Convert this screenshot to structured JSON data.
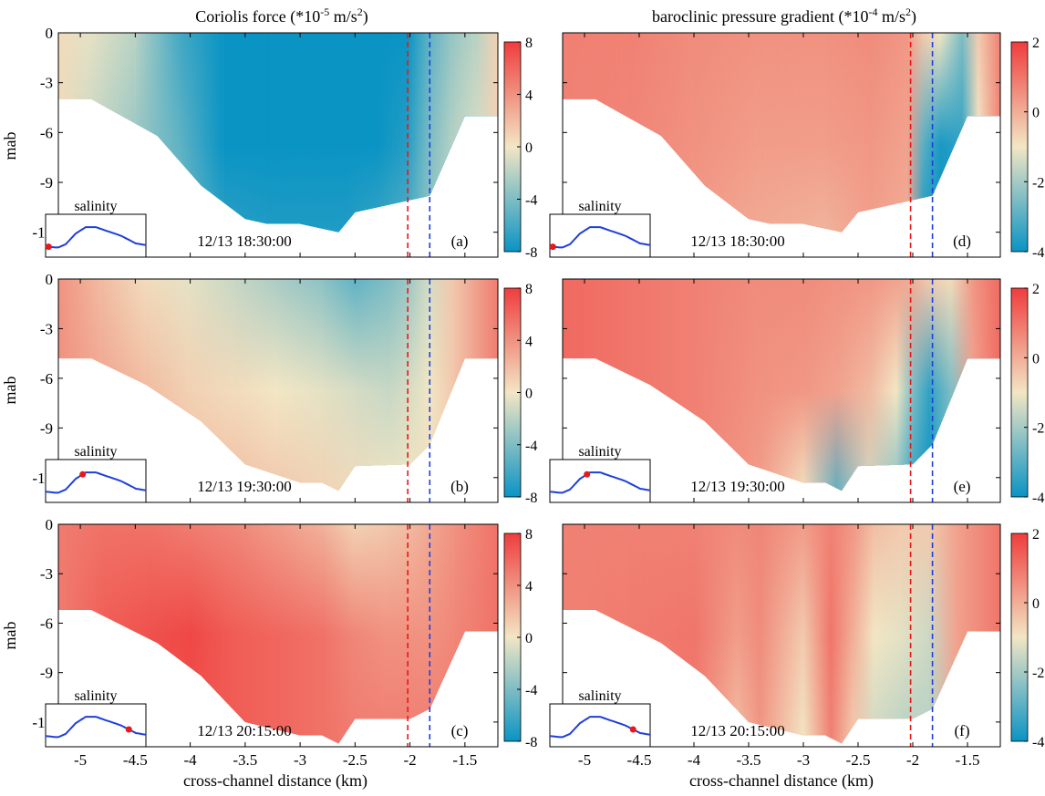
{
  "figure": {
    "columns": [
      {
        "title_prefix": "Coriolis force (*10",
        "title_exp": "-5",
        "title_mid": " m/s",
        "title_sup2": "2",
        "title_suffix": ")"
      },
      {
        "title_prefix": "baroclinic pressure gradient (*10",
        "title_exp": "-4",
        "title_mid": " m/s",
        "title_sup2": "2",
        "title_suffix": ")"
      }
    ],
    "xlabel": "cross-channel distance (km)",
    "ylabel": "mab",
    "inset_label": "salinity",
    "reference_lines": [
      {
        "x": -2.02,
        "color": "#e41a1c"
      },
      {
        "x": -1.82,
        "color": "#1f3fd9"
      }
    ],
    "colormap": [
      "#0a94c4",
      "#f2e6c4",
      "#ef3d3d"
    ]
  },
  "chart_data": [
    {
      "type": "heatmap",
      "panel": "(a)",
      "timestamp": "12/13 18:30:00",
      "xlim": [
        -5.2,
        -1.2
      ],
      "ylim": [
        -13.5,
        0
      ],
      "xticks": [
        -5,
        -4.5,
        -4,
        -3.5,
        -3,
        -2.5,
        -2,
        -1.5
      ],
      "xtick_labels": [
        "-5",
        "-4.5",
        "-4",
        "-3.5",
        "-3",
        "-2.5",
        "-2",
        "-1.5"
      ],
      "yticks": [
        0,
        -3,
        -6,
        -9,
        -12
      ],
      "ytick_labels": [
        "0",
        "-3",
        "-6",
        "-9",
        "-12"
      ],
      "colorbar": {
        "ticks": [
          8,
          4,
          0,
          -4,
          -8
        ],
        "tick_labels": [
          "8",
          "4",
          "0",
          "-4",
          "-8"
        ],
        "range": [
          -8,
          8
        ]
      },
      "bathymetry": {
        "x": [
          -5.2,
          -4.9,
          -4.3,
          -3.9,
          -3.5,
          -3.3,
          -3.0,
          -2.65,
          -2.5,
          -1.82,
          -1.5,
          -1.2
        ],
        "y": [
          -4,
          -4,
          -6.2,
          -9.2,
          -11.2,
          -11.5,
          -11.5,
          -12.0,
          -10.8,
          -9.8,
          -5.0,
          -5.0
        ]
      },
      "inset_dot": 0.03,
      "field": [
        {
          "x": -5.2,
          "values": [
            0.5,
            0.5,
            0.5
          ]
        },
        {
          "x": -4.9,
          "values": [
            -0.5,
            -1.5,
            -2.5
          ]
        },
        {
          "x": -4.5,
          "values": [
            -2,
            -3,
            -4
          ]
        },
        {
          "x": -4.1,
          "values": [
            -6,
            -5,
            -4
          ]
        },
        {
          "x": -3.7,
          "values": [
            -8,
            -8,
            -6.5
          ]
        },
        {
          "x": -3.3,
          "values": [
            -8,
            -8,
            -7
          ]
        },
        {
          "x": -2.9,
          "values": [
            -8,
            -8,
            -7
          ]
        },
        {
          "x": -2.6,
          "values": [
            -8,
            -8,
            -7
          ]
        },
        {
          "x": -2.3,
          "values": [
            -8,
            -8,
            -6
          ]
        },
        {
          "x": -2.02,
          "values": [
            -8,
            -7,
            -5
          ]
        },
        {
          "x": -1.82,
          "values": [
            -5,
            -4,
            -3
          ]
        },
        {
          "x": -1.6,
          "values": [
            -3,
            -2,
            -1
          ]
        },
        {
          "x": -1.4,
          "values": [
            -2,
            -1,
            0
          ]
        },
        {
          "x": -1.2,
          "values": [
            1,
            1,
            1
          ]
        }
      ]
    },
    {
      "type": "heatmap",
      "panel": "(b)",
      "timestamp": "12/13 19:30:00",
      "xlim": [
        -5.2,
        -1.2
      ],
      "ylim": [
        -13.5,
        0
      ],
      "xticks": [
        -5,
        -4.5,
        -4,
        -3.5,
        -3,
        -2.5,
        -2,
        -1.5
      ],
      "xtick_labels": [
        "-5",
        "-4.5",
        "-4",
        "-3.5",
        "-3",
        "-2.5",
        "-2",
        "-1.5"
      ],
      "yticks": [
        0,
        -3,
        -6,
        -9,
        -12
      ],
      "ytick_labels": [
        "0",
        "-3",
        "-6",
        "-9",
        "-12"
      ],
      "colorbar": {
        "ticks": [
          8,
          4,
          0,
          -4,
          -8
        ],
        "tick_labels": [
          "8",
          "4",
          "0",
          "-4",
          "-8"
        ],
        "range": [
          -8,
          8
        ]
      },
      "bathymetry": {
        "x": [
          -5.2,
          -4.9,
          -4.4,
          -3.9,
          -3.5,
          -3.0,
          -2.8,
          -2.65,
          -2.5,
          -2.0,
          -1.82,
          -1.5,
          -1.2
        ],
        "y": [
          -4.8,
          -4.8,
          -6.4,
          -8.6,
          -11.2,
          -12.3,
          -12.3,
          -12.8,
          -11.3,
          -11.2,
          -10.0,
          -4.8,
          -4.8
        ]
      },
      "inset_dot": 0.37,
      "field": [
        {
          "x": -5.2,
          "values": [
            4,
            4,
            4
          ]
        },
        {
          "x": -4.8,
          "values": [
            2,
            3,
            4
          ]
        },
        {
          "x": -4.4,
          "values": [
            0.5,
            2,
            3
          ]
        },
        {
          "x": -4.0,
          "values": [
            -0.5,
            1,
            2
          ]
        },
        {
          "x": -3.6,
          "values": [
            -1.5,
            0.5,
            2
          ]
        },
        {
          "x": -3.2,
          "values": [
            -2.5,
            0,
            1.5
          ]
        },
        {
          "x": -2.8,
          "values": [
            -3.5,
            -0.5,
            1
          ]
        },
        {
          "x": -2.5,
          "values": [
            -5,
            -1,
            0.5
          ]
        },
        {
          "x": -2.2,
          "values": [
            -4,
            -1.5,
            0
          ]
        },
        {
          "x": -2.02,
          "values": [
            -3,
            -1,
            0
          ]
        },
        {
          "x": -1.82,
          "values": [
            -1,
            0,
            0.5
          ]
        },
        {
          "x": -1.6,
          "values": [
            1.5,
            1.5,
            1
          ]
        },
        {
          "x": -1.2,
          "values": [
            5,
            5,
            5
          ]
        }
      ]
    },
    {
      "type": "heatmap",
      "panel": "(c)",
      "timestamp": "12/13 20:15:00",
      "xlim": [
        -5.2,
        -1.2
      ],
      "ylim": [
        -13.5,
        0
      ],
      "xticks": [
        -5,
        -4.5,
        -4,
        -3.5,
        -3,
        -2.5,
        -2,
        -1.5
      ],
      "xtick_labels": [
        "-5",
        "-4.5",
        "-4",
        "-3.5",
        "-3",
        "-2.5",
        "-2",
        "-1.5"
      ],
      "yticks": [
        0,
        -3,
        -6,
        -9,
        -12
      ],
      "ytick_labels": [
        "0",
        "-3",
        "-6",
        "-9",
        "-12"
      ],
      "colorbar": {
        "ticks": [
          8,
          4,
          0,
          -4,
          -8
        ],
        "tick_labels": [
          "8",
          "4",
          "0",
          "-4",
          "-8"
        ],
        "range": [
          -8,
          8
        ]
      },
      "bathymetry": {
        "x": [
          -5.2,
          -4.9,
          -4.3,
          -3.9,
          -3.5,
          -3.0,
          -2.8,
          -2.65,
          -2.5,
          -2.0,
          -1.82,
          -1.5,
          -1.2
        ],
        "y": [
          -5.2,
          -5.2,
          -7.2,
          -9.2,
          -12.0,
          -12.8,
          -12.8,
          -13.3,
          -11.8,
          -11.8,
          -11.2,
          -6.5,
          -6.5
        ]
      },
      "inset_dot": 0.83,
      "field": [
        {
          "x": -5.2,
          "values": [
            5,
            5,
            5
          ]
        },
        {
          "x": -4.8,
          "values": [
            5.5,
            6.5,
            6.5
          ]
        },
        {
          "x": -4.4,
          "values": [
            5.5,
            7,
            7
          ]
        },
        {
          "x": -4.0,
          "values": [
            5,
            7.5,
            7
          ]
        },
        {
          "x": -3.6,
          "values": [
            4.5,
            6.5,
            6.5
          ]
        },
        {
          "x": -3.2,
          "values": [
            3.5,
            6,
            6
          ]
        },
        {
          "x": -2.8,
          "values": [
            2.5,
            5.5,
            5.5
          ]
        },
        {
          "x": -2.5,
          "values": [
            1,
            4.5,
            5
          ]
        },
        {
          "x": -2.2,
          "values": [
            1.5,
            4,
            5
          ]
        },
        {
          "x": -2.02,
          "values": [
            2,
            4,
            5
          ]
        },
        {
          "x": -1.82,
          "values": [
            3,
            4,
            5
          ]
        },
        {
          "x": -1.6,
          "values": [
            4,
            4.5,
            5
          ]
        },
        {
          "x": -1.2,
          "values": [
            5.5,
            5.5,
            5.5
          ]
        }
      ]
    },
    {
      "type": "heatmap",
      "panel": "(d)",
      "timestamp": "12/13 18:30:00",
      "xlim": [
        -5.2,
        -1.2
      ],
      "ylim": [
        -13.5,
        0
      ],
      "xticks": [
        -5,
        -4.5,
        -4,
        -3.5,
        -3,
        -2.5,
        -2,
        -1.5
      ],
      "xtick_labels": [
        "-5",
        "-4.5",
        "-4",
        "-3.5",
        "-3",
        "-2.5",
        "-2",
        "-1.5"
      ],
      "yticks": [
        0,
        -3,
        -6,
        -9,
        -12
      ],
      "ytick_labels": [
        "0",
        "-3",
        "-6",
        "-9",
        "-12"
      ],
      "colorbar": {
        "ticks": [
          2,
          0,
          -2,
          -4
        ],
        "tick_labels": [
          "2",
          "0",
          "-2",
          "-4"
        ],
        "range": [
          -4,
          2
        ]
      },
      "bathymetry": {
        "x": [
          -5.2,
          -4.9,
          -4.3,
          -3.9,
          -3.5,
          -3.3,
          -3.0,
          -2.65,
          -2.5,
          -1.82,
          -1.5,
          -1.2
        ],
        "y": [
          -4,
          -4,
          -6.2,
          -9.2,
          -11.2,
          -11.5,
          -11.5,
          -12.0,
          -10.8,
          -9.8,
          -5.0,
          -5.0
        ]
      },
      "inset_dot": 0.03,
      "field": [
        {
          "x": -5.2,
          "values": [
            0.8,
            0.8,
            0.8
          ]
        },
        {
          "x": -4.6,
          "values": [
            0.8,
            0.7,
            0.6
          ]
        },
        {
          "x": -4.0,
          "values": [
            0.6,
            0.5,
            0.3
          ]
        },
        {
          "x": -3.4,
          "values": [
            0.5,
            0.3,
            0.0
          ]
        },
        {
          "x": -2.8,
          "values": [
            0.5,
            0.3,
            -0.2
          ]
        },
        {
          "x": -2.4,
          "values": [
            0.6,
            0.4,
            0.2
          ]
        },
        {
          "x": -2.05,
          "values": [
            0.4,
            0.2,
            0.0
          ]
        },
        {
          "x": -1.9,
          "values": [
            -0.5,
            -3.0,
            -4.0
          ]
        },
        {
          "x": -1.75,
          "values": [
            -1.0,
            -3.8,
            -4.0
          ]
        },
        {
          "x": -1.55,
          "values": [
            -2.5,
            -3.5,
            -4.0
          ]
        },
        {
          "x": -1.4,
          "values": [
            -0.5,
            -1.0,
            -2.0
          ]
        },
        {
          "x": -1.2,
          "values": [
            0.8,
            0.8,
            0.8
          ]
        }
      ]
    },
    {
      "type": "heatmap",
      "panel": "(e)",
      "timestamp": "12/13 19:30:00",
      "xlim": [
        -5.2,
        -1.2
      ],
      "ylim": [
        -13.5,
        0
      ],
      "xticks": [
        -5,
        -4.5,
        -4,
        -3.5,
        -3,
        -2.5,
        -2,
        -1.5
      ],
      "xtick_labels": [
        "-5",
        "-4.5",
        "-4",
        "-3.5",
        "-3",
        "-2.5",
        "-2",
        "-1.5"
      ],
      "yticks": [
        0,
        -3,
        -6,
        -9,
        -12
      ],
      "ytick_labels": [
        "0",
        "-3",
        "-6",
        "-9",
        "-12"
      ],
      "colorbar": {
        "ticks": [
          2,
          0,
          -2,
          -4
        ],
        "tick_labels": [
          "2",
          "0",
          "-2",
          "-4"
        ],
        "range": [
          -4,
          2
        ]
      },
      "bathymetry": {
        "x": [
          -5.2,
          -4.9,
          -4.4,
          -3.9,
          -3.5,
          -3.0,
          -2.8,
          -2.65,
          -2.5,
          -2.0,
          -1.82,
          -1.5,
          -1.2
        ],
        "y": [
          -4.8,
          -4.8,
          -6.4,
          -8.6,
          -11.2,
          -12.3,
          -12.3,
          -12.8,
          -11.3,
          -11.2,
          -10.0,
          -4.8,
          -4.8
        ]
      },
      "inset_dot": 0.37,
      "field": [
        {
          "x": -5.2,
          "values": [
            1.2,
            1.2,
            1.2
          ]
        },
        {
          "x": -4.6,
          "values": [
            1.0,
            1.0,
            1.0
          ]
        },
        {
          "x": -4.0,
          "values": [
            0.8,
            0.8,
            0.8
          ]
        },
        {
          "x": -3.4,
          "values": [
            0.6,
            0.5,
            0.3
          ]
        },
        {
          "x": -3.0,
          "values": [
            0.6,
            0.4,
            -1.0
          ]
        },
        {
          "x": -2.7,
          "values": [
            0.5,
            0.2,
            -3.0
          ]
        },
        {
          "x": -2.4,
          "values": [
            0.4,
            -0.2,
            -1.5
          ]
        },
        {
          "x": -2.15,
          "values": [
            0.2,
            -1.0,
            -2.5
          ]
        },
        {
          "x": -2.0,
          "values": [
            0.0,
            -2.5,
            -3.5
          ]
        },
        {
          "x": -1.85,
          "values": [
            -0.5,
            -3.5,
            -4.0
          ]
        },
        {
          "x": -1.65,
          "values": [
            -0.8,
            -2.5,
            -2.5
          ]
        },
        {
          "x": -1.45,
          "values": [
            0.4,
            0.2,
            0.0
          ]
        },
        {
          "x": -1.2,
          "values": [
            1.2,
            1.2,
            1.2
          ]
        }
      ]
    },
    {
      "type": "heatmap",
      "panel": "(f)",
      "timestamp": "12/13 20:15:00",
      "xlim": [
        -5.2,
        -1.2
      ],
      "ylim": [
        -13.5,
        0
      ],
      "xticks": [
        -5,
        -4.5,
        -4,
        -3.5,
        -3,
        -2.5,
        -2,
        -1.5
      ],
      "xtick_labels": [
        "-5",
        "-4.5",
        "-4",
        "-3.5",
        "-3",
        "-2.5",
        "-2",
        "-1.5"
      ],
      "yticks": [
        0,
        -3,
        -6,
        -9,
        -12
      ],
      "ytick_labels": [
        "0",
        "-3",
        "-6",
        "-9",
        "-12"
      ],
      "colorbar": {
        "ticks": [
          2,
          0,
          -2,
          -4
        ],
        "tick_labels": [
          "2",
          "0",
          "-2",
          "-4"
        ],
        "range": [
          -4,
          2
        ]
      },
      "bathymetry": {
        "x": [
          -5.2,
          -4.9,
          -4.3,
          -3.9,
          -3.5,
          -3.0,
          -2.8,
          -2.65,
          -2.5,
          -2.0,
          -1.82,
          -1.5,
          -1.2
        ],
        "y": [
          -5.2,
          -5.2,
          -7.2,
          -9.2,
          -12.0,
          -12.8,
          -12.8,
          -13.3,
          -11.8,
          -11.8,
          -11.2,
          -6.5,
          -6.5
        ]
      },
      "inset_dot": 0.83,
      "field": [
        {
          "x": -5.2,
          "values": [
            0.8,
            0.8,
            0.8
          ]
        },
        {
          "x": -4.6,
          "values": [
            0.8,
            0.9,
            0.9
          ]
        },
        {
          "x": -4.0,
          "values": [
            0.8,
            1.0,
            0.9
          ]
        },
        {
          "x": -3.6,
          "values": [
            0.6,
            0.3,
            -0.3
          ]
        },
        {
          "x": -3.4,
          "values": [
            0.7,
            0.6,
            0.4
          ]
        },
        {
          "x": -3.0,
          "values": [
            0.3,
            -0.5,
            -1.0
          ]
        },
        {
          "x": -2.75,
          "values": [
            0.8,
            1.0,
            0.8
          ]
        },
        {
          "x": -2.55,
          "values": [
            0.4,
            0.0,
            -0.5
          ]
        },
        {
          "x": -2.35,
          "values": [
            -0.3,
            -1.0,
            -1.5
          ]
        },
        {
          "x": -2.1,
          "values": [
            -0.5,
            -1.2,
            -1.8
          ]
        },
        {
          "x": -1.85,
          "values": [
            -0.5,
            -1.5,
            -1.8
          ]
        },
        {
          "x": -1.6,
          "values": [
            0.2,
            0.2,
            0.2
          ]
        },
        {
          "x": -1.2,
          "values": [
            1.0,
            1.0,
            1.0
          ]
        }
      ]
    }
  ]
}
